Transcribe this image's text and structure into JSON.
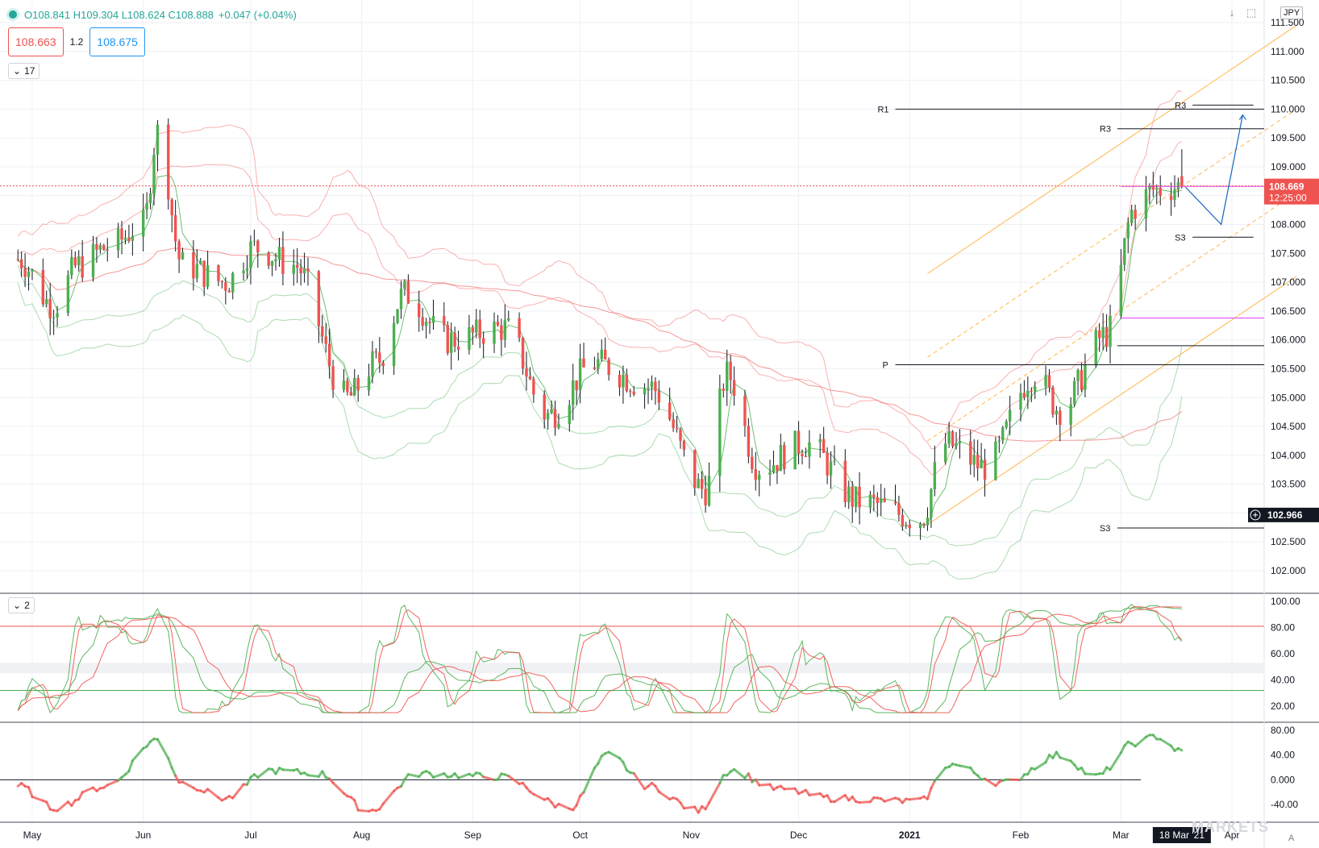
{
  "header": {
    "ohlc": "O108.841  H109.304  L108.624  C108.888",
    "change": "+0.047 (+0.04%)",
    "sell_price": "108.663",
    "spread": "1.2",
    "buy_price": "108.675",
    "currency": "JPY",
    "indicator_count": "17",
    "pane2_count": "2",
    "down_arrow_icon": "arrow-down-icon",
    "maximize_icon": "maximize-icon"
  },
  "colors": {
    "up": "#4caf50",
    "down": "#ef5350",
    "channel": "#ffb74d",
    "pivot": "#131722",
    "projection": "#1565c0",
    "magenta": "#e040fb"
  },
  "badges": {
    "last_price": "108.669",
    "countdown": "12:25:00",
    "crosshair_price": "102.966",
    "crosshair_date": "18 Mar '21"
  },
  "level_labels": {
    "r1": "R1",
    "r3_upper": "R3",
    "r3_lower": "R3",
    "s3_upper": "S3",
    "s3_lower": "S3",
    "p": "P"
  },
  "watermark": "MARKETS",
  "auto_label": "A",
  "chart_data": [
    {
      "type": "candlestick",
      "pane": "price",
      "symbol_currency": "JPY",
      "x_tick_labels": [
        "May",
        "Jun",
        "Jul",
        "Aug",
        "Sep",
        "Oct",
        "Nov",
        "Dec",
        "2021",
        "Feb",
        "Mar",
        "Apr"
      ],
      "y_ticks": [
        "111.500",
        "111.000",
        "110.500",
        "110.000",
        "109.500",
        "109.000",
        "108.500",
        "108.000",
        "107.500",
        "107.000",
        "106.500",
        "106.000",
        "105.500",
        "105.000",
        "104.500",
        "104.000",
        "103.500",
        "103.000",
        "102.500",
        "102.000"
      ],
      "ylim": [
        101.6,
        111.6
      ],
      "ohlc_last": {
        "open": 108.841,
        "high": 109.304,
        "low": 108.624,
        "close": 108.888
      },
      "trend_anchors": [
        {
          "date": "2020-04-27",
          "value": 107.4
        },
        {
          "date": "2020-05-07",
          "value": 106.6
        },
        {
          "date": "2020-05-14",
          "value": 107.3
        },
        {
          "date": "2020-05-22",
          "value": 107.6
        },
        {
          "date": "2020-06-01",
          "value": 108.0
        },
        {
          "date": "2020-06-05",
          "value": 109.6
        },
        {
          "date": "2020-06-12",
          "value": 107.3
        },
        {
          "date": "2020-06-24",
          "value": 107.0
        },
        {
          "date": "2020-07-02",
          "value": 107.6
        },
        {
          "date": "2020-07-13",
          "value": 107.3
        },
        {
          "date": "2020-07-28",
          "value": 105.0
        },
        {
          "date": "2020-08-05",
          "value": 105.6
        },
        {
          "date": "2020-08-13",
          "value": 106.8
        },
        {
          "date": "2020-08-25",
          "value": 106.0
        },
        {
          "date": "2020-09-10",
          "value": 106.2
        },
        {
          "date": "2020-09-22",
          "value": 104.7
        },
        {
          "date": "2020-10-05",
          "value": 105.6
        },
        {
          "date": "2020-10-20",
          "value": 105.2
        },
        {
          "date": "2020-11-05",
          "value": 103.4
        },
        {
          "date": "2020-11-11",
          "value": 105.4
        },
        {
          "date": "2020-11-20",
          "value": 103.8
        },
        {
          "date": "2020-12-03",
          "value": 104.2
        },
        {
          "date": "2020-12-18",
          "value": 103.2
        },
        {
          "date": "2021-01-04",
          "value": 102.9
        },
        {
          "date": "2021-01-11",
          "value": 104.2
        },
        {
          "date": "2021-01-22",
          "value": 103.8
        },
        {
          "date": "2021-02-05",
          "value": 105.4
        },
        {
          "date": "2021-02-12",
          "value": 104.8
        },
        {
          "date": "2021-02-25",
          "value": 106.1
        },
        {
          "date": "2021-03-05",
          "value": 108.3
        },
        {
          "date": "2021-03-10",
          "value": 108.6
        },
        {
          "date": "2021-03-18",
          "value": 108.67
        }
      ],
      "horizontal_levels": [
        {
          "label": "R1",
          "value": 110.0,
          "from": "2020-12-28",
          "to": "2021-04-30"
        },
        {
          "label": "R3",
          "value": 109.66,
          "from": "2021-02-28",
          "to": "2021-04-20"
        },
        {
          "label": "R3",
          "value": 110.07,
          "from": "2021-03-21",
          "to": "2021-04-07"
        },
        {
          "label": "S3",
          "value": 107.78,
          "from": "2021-03-21",
          "to": "2021-04-07"
        },
        {
          "label": "S3",
          "value": 102.74,
          "from": "2021-02-28",
          "to": "2021-04-20"
        },
        {
          "label": "P",
          "value": 105.57,
          "from": "2020-12-28",
          "to": "2021-04-30"
        },
        {
          "label": "",
          "value": 105.9,
          "from": "2021-02-28",
          "to": "2021-04-20"
        },
        {
          "label": "",
          "value": 106.38,
          "from": "2021-03-01",
          "to": "2021-04-30",
          "color": "magenta"
        },
        {
          "label": "",
          "value": 108.66,
          "from": "2021-03-01",
          "to": "2021-04-30",
          "color": "magenta"
        }
      ],
      "projection_path": [
        {
          "date": "2021-03-19",
          "value": 108.65
        },
        {
          "date": "2021-03-29",
          "value": 108.0
        },
        {
          "date": "2021-04-04",
          "value": 109.9
        }
      ],
      "last_price": 108.669,
      "crosshair_value": 102.966
    },
    {
      "type": "line",
      "pane": "oscillator",
      "y_ticks": [
        "100.00",
        "80.00",
        "60.00",
        "40.00",
        "20.00"
      ],
      "ylim": [
        10,
        105
      ],
      "reference_levels": [
        81,
        53,
        45,
        32
      ],
      "end_values": {
        "fast_green": 32,
        "fast_red": 39,
        "slow_green": 96,
        "slow_red": 96
      }
    },
    {
      "type": "area",
      "pane": "momentum",
      "y_ticks": [
        "80.00",
        "40.00",
        "0.000",
        "-40.00"
      ],
      "ylim": [
        -70,
        95
      ],
      "anchors": [
        {
          "date": "2020-04-27",
          "value": -10
        },
        {
          "date": "2020-05-07",
          "value": -45
        },
        {
          "date": "2020-05-22",
          "value": -10
        },
        {
          "date": "2020-06-05",
          "value": 65
        },
        {
          "date": "2020-06-12",
          "value": -5
        },
        {
          "date": "2020-06-24",
          "value": -30
        },
        {
          "date": "2020-07-06",
          "value": 15
        },
        {
          "date": "2020-07-20",
          "value": 10
        },
        {
          "date": "2020-08-03",
          "value": -50
        },
        {
          "date": "2020-08-17",
          "value": 10
        },
        {
          "date": "2020-09-08",
          "value": 5
        },
        {
          "date": "2020-09-28",
          "value": -45
        },
        {
          "date": "2020-10-09",
          "value": 40
        },
        {
          "date": "2020-10-20",
          "value": -10
        },
        {
          "date": "2020-11-03",
          "value": -50
        },
        {
          "date": "2020-11-12",
          "value": 15
        },
        {
          "date": "2020-11-25",
          "value": -15
        },
        {
          "date": "2020-12-11",
          "value": -30
        },
        {
          "date": "2021-01-04",
          "value": -35
        },
        {
          "date": "2021-01-12",
          "value": 25
        },
        {
          "date": "2021-01-27",
          "value": -5
        },
        {
          "date": "2021-02-12",
          "value": 40
        },
        {
          "date": "2021-02-22",
          "value": 5
        },
        {
          "date": "2021-03-05",
          "value": 60
        },
        {
          "date": "2021-03-11",
          "value": 70
        },
        {
          "date": "2021-03-18",
          "value": 45
        }
      ]
    }
  ]
}
